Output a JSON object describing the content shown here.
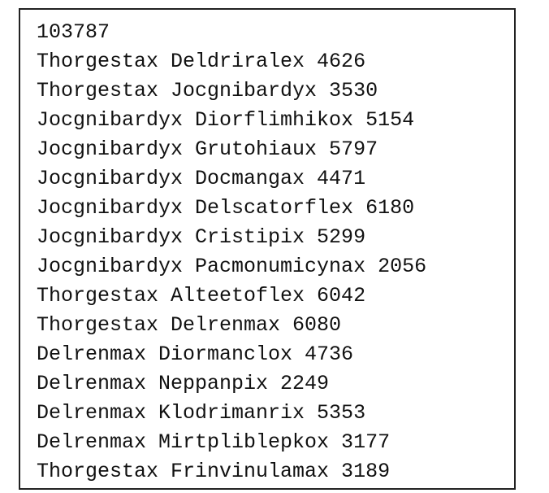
{
  "document": {
    "lines": [
      "103787",
      "Thorgestax Deldriralex 4626",
      "Thorgestax Jocgnibardyx 3530",
      "Jocgnibardyx Diorflimhikox 5154",
      "Jocgnibardyx Grutohiaux 5797",
      "Jocgnibardyx Docmangax 4471",
      "Jocgnibardyx Delscatorflex 6180",
      "Jocgnibardyx Cristipix 5299",
      "Jocgnibardyx Pacmonumicynax 2056",
      "Thorgestax Alteetoflex 6042",
      "Thorgestax Delrenmax 6080",
      "Delrenmax Diormanclox 4736",
      "Delrenmax Neppanpix 2249",
      "Delrenmax Klodrimanrix 5353",
      "Delrenmax Mirtpliblepkox 3177",
      "Thorgestax Frinvinulamax 3189"
    ]
  }
}
